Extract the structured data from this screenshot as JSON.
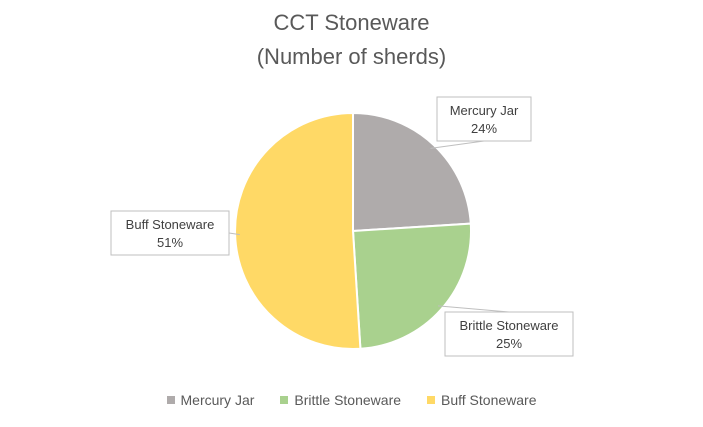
{
  "chart_data": {
    "type": "pie",
    "title": "CCT Stoneware",
    "subtitle": "(Number of sherds)",
    "categories": [
      "Mercury Jar",
      "Brittle Stoneware",
      "Buff Stoneware"
    ],
    "values": [
      24,
      25,
      51
    ],
    "value_labels": [
      "24%",
      "25%",
      "51%"
    ],
    "unit": "%",
    "colors": [
      "#AFABAB",
      "#A9D18E",
      "#FFD966"
    ],
    "legend": "bottom",
    "data_labels": "callout"
  }
}
